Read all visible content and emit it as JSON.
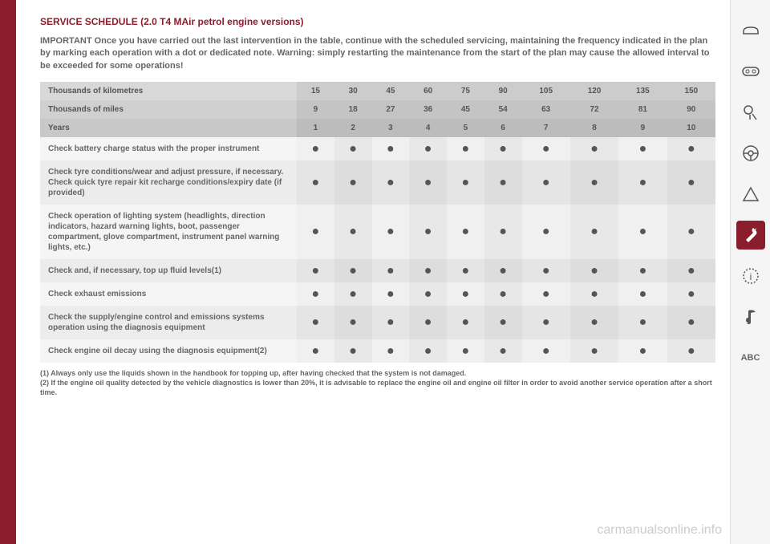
{
  "title": "SERVICE SCHEDULE (2.0 T4 MAir petrol engine versions)",
  "important_text": "IMPORTANT Once you have carried out the last intervention in the table, continue with the scheduled servicing, maintaining the frequency indicated in the plan by marking each operation with a dot or dedicated note. Warning: simply restarting the maintenance from the start of the plan may cause the allowed interval to be exceeded for some operations!",
  "headers": {
    "km_label": "Thousands of kilometres",
    "km_values": [
      "15",
      "30",
      "45",
      "60",
      "75",
      "90",
      "105",
      "120",
      "135",
      "150"
    ],
    "miles_label": "Thousands of miles",
    "miles_values": [
      "9",
      "18",
      "27",
      "36",
      "45",
      "54",
      "63",
      "72",
      "81",
      "90"
    ],
    "years_label": "Years",
    "years_values": [
      "1",
      "2",
      "3",
      "4",
      "5",
      "6",
      "7",
      "8",
      "9",
      "10"
    ]
  },
  "rows": [
    {
      "label": "Check battery charge status with the proper instrument"
    },
    {
      "label": "Check tyre conditions/wear and adjust pressure, if necessary. Check quick tyre repair kit recharge conditions/expiry date (if provided)"
    },
    {
      "label": "Check operation of lighting system (headlights, direction indicators, hazard warning lights, boot, passenger compartment, glove compartment, instrument panel warning lights, etc.)"
    },
    {
      "label": "Check and, if necessary, top up fluid levels(1)"
    },
    {
      "label": "Check exhaust emissions"
    },
    {
      "label": "Check the supply/engine control and emissions systems operation using the diagnosis equipment"
    },
    {
      "label": "Check engine oil decay using the diagnosis equipment(2)"
    }
  ],
  "footnotes": {
    "f1": "(1) Always only use the liquids shown in the handbook for topping up, after having checked that the system is not damaged.",
    "f2": "(2) If the engine oil quality detected by the vehicle diagnostics is lower than 20%, it is advisable to replace the engine oil and engine oil filter in order to avoid another service operation after a short time."
  },
  "watermark": "carmanualsonline.info",
  "sidebar_abc": "ABC",
  "colors": {
    "brand": "#8b1e2d",
    "text_muted": "#666",
    "header_bg": "#ccc"
  }
}
